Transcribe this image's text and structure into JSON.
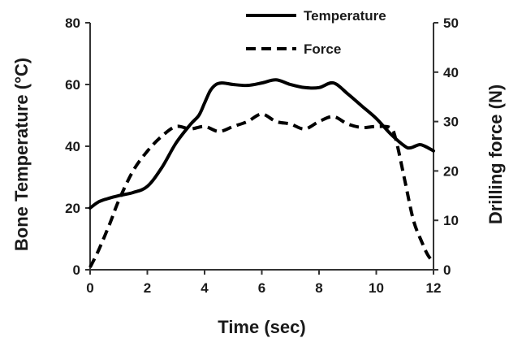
{
  "chart_data": {
    "type": "line",
    "xlabel": "Time (sec)",
    "ylabel": "Bone Temperature (°C)",
    "y2label": "Drilling force (N)",
    "xlim": [
      0,
      12
    ],
    "ylim": [
      0,
      80
    ],
    "y2lim": [
      0,
      50
    ],
    "xticks": [
      0,
      2,
      4,
      6,
      8,
      10,
      12
    ],
    "yticks": [
      0,
      20,
      40,
      60,
      80
    ],
    "y2ticks": [
      0,
      10,
      20,
      30,
      40,
      50
    ],
    "grid": false,
    "legend_position": "top-center",
    "series": [
      {
        "name": "Temperature",
        "axis": "left",
        "style": "solid",
        "color": "#000000",
        "x": [
          0,
          0.3,
          0.6,
          1.0,
          1.5,
          2.0,
          2.5,
          3.0,
          3.5,
          3.8,
          4.0,
          4.2,
          4.4,
          4.6,
          4.8,
          5.0,
          5.5,
          6.0,
          6.5,
          7.0,
          7.5,
          8.0,
          8.5,
          9.0,
          9.5,
          10.0,
          10.5,
          11.0,
          11.2,
          11.5,
          11.7,
          12.0
        ],
        "y": [
          20,
          22,
          23,
          24,
          25,
          27,
          33,
          41,
          47,
          50,
          54,
          58,
          60,
          60.5,
          60.3,
          60,
          59.7,
          60.5,
          61.5,
          60,
          59,
          59,
          60.5,
          57,
          53,
          49,
          44,
          40,
          39.5,
          40.5,
          40,
          38.5
        ]
      },
      {
        "name": "Force",
        "axis": "right",
        "style": "dashed",
        "color": "#000000",
        "x": [
          0,
          0.3,
          0.7,
          1.0,
          1.5,
          2.0,
          2.5,
          3.0,
          3.5,
          4.0,
          4.5,
          5.0,
          5.5,
          6.0,
          6.5,
          7.0,
          7.5,
          8.0,
          8.5,
          9.0,
          9.5,
          10.0,
          10.5,
          10.7,
          11.0,
          11.3,
          11.6,
          11.8,
          12.0
        ],
        "y": [
          0.5,
          4,
          9.5,
          14,
          20,
          24,
          27,
          29,
          28.5,
          29,
          28,
          29,
          30,
          31.5,
          30,
          29.5,
          28.5,
          30,
          31,
          29.5,
          28.8,
          29,
          28.7,
          26,
          18,
          10,
          5.5,
          3,
          1.5
        ]
      }
    ]
  }
}
